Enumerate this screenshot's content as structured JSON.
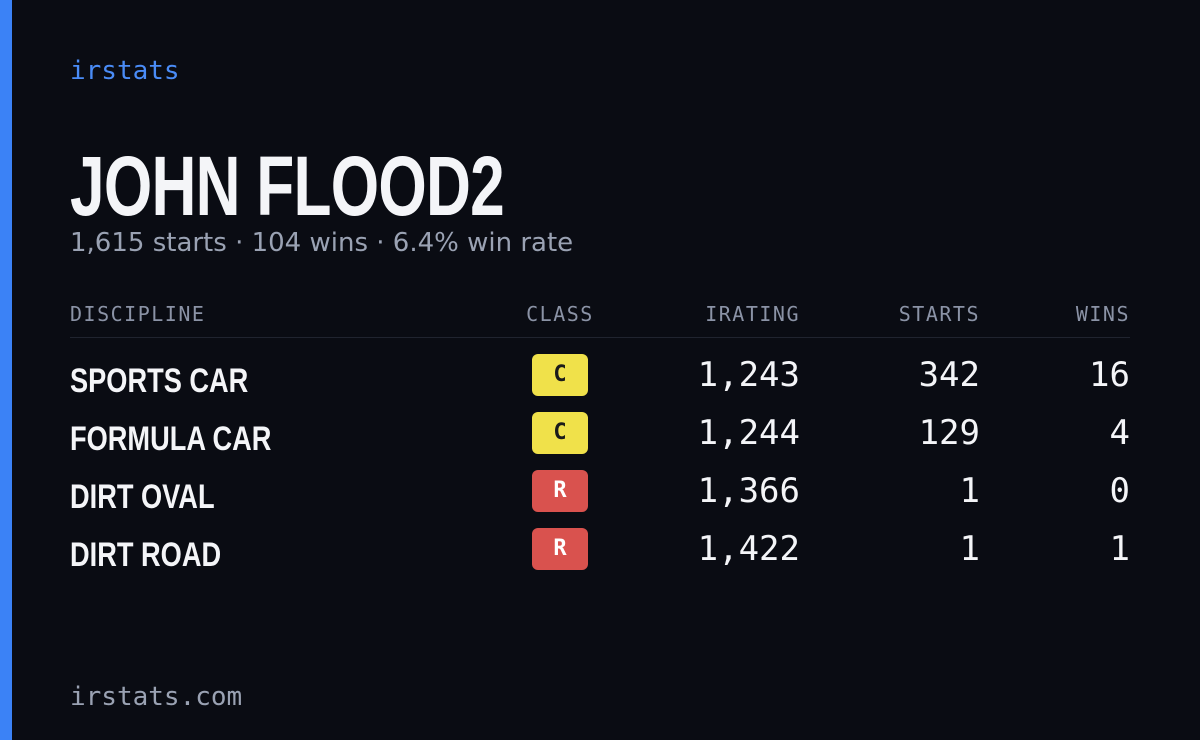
{
  "brand": "irstats",
  "name": "JOHN FLOOD2",
  "summary": "1,615 starts · 104 wins · 6.4% win rate",
  "table": {
    "headers": [
      "DISCIPLINE",
      "CLASS",
      "IRATING",
      "STARTS",
      "WINS"
    ],
    "rows": [
      {
        "discipline": "SPORTS CAR",
        "class": "C",
        "class_color": "#f0e14a",
        "class_text_color": "#1a1a1a",
        "irating": "1,243",
        "starts": "342",
        "wins": "16"
      },
      {
        "discipline": "FORMULA CAR",
        "class": "C",
        "class_color": "#f0e14a",
        "class_text_color": "#1a1a1a",
        "irating": "1,244",
        "starts": "129",
        "wins": "4"
      },
      {
        "discipline": "DIRT OVAL",
        "class": "R",
        "class_color": "#d9524e",
        "class_text_color": "#ffffff",
        "irating": "1,366",
        "starts": "1",
        "wins": "0"
      },
      {
        "discipline": "DIRT ROAD",
        "class": "R",
        "class_color": "#d9524e",
        "class_text_color": "#ffffff",
        "irating": "1,422",
        "starts": "1",
        "wins": "1"
      }
    ]
  },
  "footer": "irstats.com"
}
